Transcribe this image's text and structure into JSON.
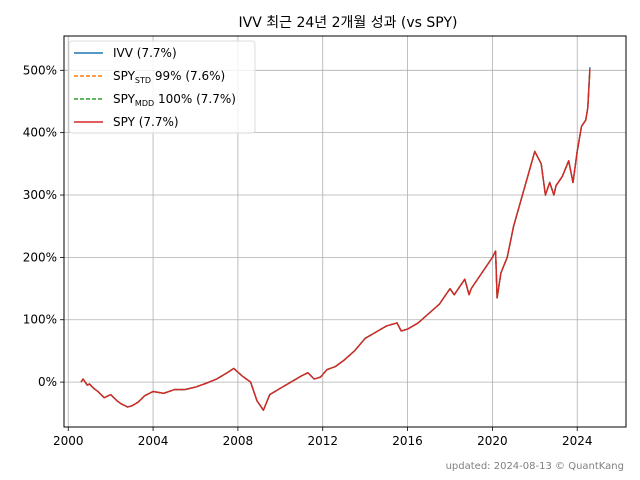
{
  "chart_data": {
    "type": "line",
    "title": "IVV 최근 24년 2개월 성과 (vs SPY)",
    "xlabel": "",
    "ylabel": "",
    "xlim": [
      1999.8,
      2026.3
    ],
    "ylim": [
      -72,
      555
    ],
    "x_ticks": [
      2000,
      2004,
      2008,
      2012,
      2016,
      2020,
      2024
    ],
    "x_tick_labels": [
      "2000",
      "2004",
      "2008",
      "2012",
      "2016",
      "2020",
      "2024"
    ],
    "y_ticks": [
      0,
      100,
      200,
      300,
      400,
      500
    ],
    "y_tick_labels": [
      "0%",
      "100%",
      "200%",
      "300%",
      "400%",
      "500%"
    ],
    "grid": true,
    "legend_position": "top-left",
    "legend": [
      {
        "main": "IVV",
        "sub": "",
        "rest": " (7.7%)",
        "color": "#1f77b4",
        "dash": false
      },
      {
        "main": "SPY",
        "sub": "STD",
        "rest": " 99% (7.6%)",
        "color": "#ff7f0e",
        "dash": true
      },
      {
        "main": "SPY",
        "sub": "MDD",
        "rest": " 100% (7.7%)",
        "color": "#2ca02c",
        "dash": true
      },
      {
        "main": "SPY",
        "sub": "",
        "rest": " (7.7%)",
        "color": "#d62728",
        "dash": false
      }
    ],
    "x": [
      2000.6,
      2000.7,
      2000.9,
      2001.0,
      2001.2,
      2001.4,
      2001.7,
      2002.0,
      2002.3,
      2002.5,
      2002.8,
      2003.0,
      2003.3,
      2003.6,
      2004.0,
      2004.5,
      2005.0,
      2005.5,
      2006.0,
      2006.5,
      2007.0,
      2007.5,
      2007.8,
      2008.2,
      2008.6,
      2008.9,
      2009.0,
      2009.2,
      2009.5,
      2010.0,
      2010.5,
      2011.0,
      2011.3,
      2011.6,
      2011.9,
      2012.2,
      2012.6,
      2013.0,
      2013.5,
      2014.0,
      2014.5,
      2015.0,
      2015.5,
      2015.7,
      2016.0,
      2016.5,
      2017.0,
      2017.5,
      2018.0,
      2018.2,
      2018.7,
      2018.9,
      2019.0,
      2019.5,
      2020.0,
      2020.15,
      2020.22,
      2020.4,
      2020.7,
      2021.0,
      2021.5,
      2022.0,
      2022.3,
      2022.5,
      2022.7,
      2022.9,
      2023.0,
      2023.3,
      2023.6,
      2023.8,
      2024.0,
      2024.2,
      2024.4,
      2024.5,
      2024.6
    ],
    "series": [
      {
        "name": "IVV",
        "color": "#1f77b4",
        "values": [
          0,
          5,
          -5,
          -3,
          -10,
          -15,
          -25,
          -20,
          -30,
          -35,
          -40,
          -38,
          -32,
          -22,
          -15,
          -18,
          -12,
          -12,
          -8,
          -2,
          5,
          15,
          22,
          10,
          0,
          -30,
          -35,
          -45,
          -20,
          -10,
          0,
          10,
          15,
          5,
          8,
          20,
          25,
          35,
          50,
          70,
          80,
          90,
          95,
          82,
          85,
          95,
          110,
          125,
          150,
          140,
          165,
          140,
          150,
          175,
          200,
          210,
          135,
          175,
          200,
          250,
          310,
          370,
          350,
          300,
          320,
          300,
          315,
          330,
          355,
          320,
          370,
          410,
          420,
          440,
          505
        ]
      },
      {
        "name": "SPY STD 99%",
        "color": "#ff7f0e",
        "values": [
          0,
          5,
          -5,
          -3,
          -10,
          -15,
          -25,
          -20,
          -30,
          -35,
          -40,
          -38,
          -32,
          -22,
          -15,
          -18,
          -12,
          -12,
          -8,
          -2,
          5,
          15,
          22,
          10,
          0,
          -30,
          -35,
          -45,
          -20,
          -10,
          0,
          10,
          15,
          5,
          8,
          20,
          25,
          35,
          50,
          70,
          80,
          90,
          95,
          82,
          85,
          95,
          110,
          125,
          150,
          140,
          165,
          140,
          150,
          175,
          200,
          210,
          135,
          175,
          200,
          250,
          310,
          370,
          350,
          300,
          320,
          300,
          315,
          330,
          355,
          320,
          370,
          410,
          420,
          440,
          500
        ]
      },
      {
        "name": "SPY MDD 100%",
        "color": "#2ca02c",
        "values": [
          0,
          5,
          -5,
          -3,
          -10,
          -15,
          -25,
          -20,
          -30,
          -35,
          -40,
          -38,
          -32,
          -22,
          -15,
          -18,
          -12,
          -12,
          -8,
          -2,
          5,
          15,
          22,
          10,
          0,
          -30,
          -35,
          -45,
          -20,
          -10,
          0,
          10,
          15,
          5,
          8,
          20,
          25,
          35,
          50,
          70,
          80,
          90,
          95,
          82,
          85,
          95,
          110,
          125,
          150,
          140,
          165,
          140,
          150,
          175,
          200,
          210,
          135,
          175,
          200,
          250,
          310,
          370,
          350,
          300,
          320,
          300,
          315,
          330,
          355,
          320,
          370,
          410,
          420,
          440,
          502
        ]
      },
      {
        "name": "SPY",
        "color": "#d62728",
        "values": [
          0,
          5,
          -5,
          -3,
          -10,
          -15,
          -25,
          -20,
          -30,
          -35,
          -40,
          -38,
          -32,
          -22,
          -15,
          -18,
          -12,
          -12,
          -8,
          -2,
          5,
          15,
          22,
          10,
          0,
          -30,
          -35,
          -45,
          -20,
          -10,
          0,
          10,
          15,
          5,
          8,
          20,
          25,
          35,
          50,
          70,
          80,
          90,
          95,
          82,
          85,
          95,
          110,
          125,
          150,
          140,
          165,
          140,
          150,
          175,
          200,
          210,
          135,
          175,
          200,
          250,
          310,
          370,
          350,
          300,
          320,
          300,
          315,
          330,
          355,
          320,
          370,
          410,
          420,
          440,
          502
        ]
      }
    ],
    "footnote": "updated: 2024-08-13 © QuantKang"
  }
}
